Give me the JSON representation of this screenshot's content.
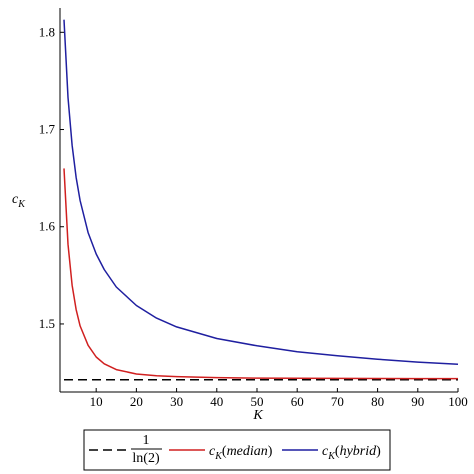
{
  "chart_data": {
    "type": "line",
    "xlabel": "K",
    "ylabel": "c",
    "ylabel_sub": "K",
    "xlim": [
      1,
      100
    ],
    "ylim": [
      1.43,
      1.825
    ],
    "xticks": [
      10,
      20,
      30,
      40,
      50,
      60,
      70,
      80,
      90,
      100
    ],
    "yticks": [
      1.5,
      1.6,
      1.7,
      1.8
    ],
    "ytick_labels": [
      "1.5",
      "1.6",
      "1.7",
      "1.8"
    ],
    "grid": false,
    "legend_position": "bottom",
    "series": [
      {
        "legend_numerator": "1",
        "legend_denominator": "ln(2)",
        "color": "#000000",
        "dash": "dashed",
        "x": [
          2,
          100
        ],
        "y": [
          1.4427,
          1.4427
        ]
      },
      {
        "legend_prefix": "c",
        "legend_sub": "K",
        "legend_arg": "median",
        "color": "#d02020",
        "dash": "solid",
        "x": [
          2,
          3,
          4,
          5,
          6,
          8,
          10,
          12,
          15,
          20,
          25,
          30,
          40,
          50,
          60,
          70,
          80,
          90,
          100
        ],
        "y": [
          1.66,
          1.582,
          1.54,
          1.515,
          1.498,
          1.478,
          1.466,
          1.459,
          1.453,
          1.4485,
          1.4468,
          1.4458,
          1.4448,
          1.4443,
          1.4441,
          1.444,
          1.4439,
          1.4438,
          1.4438
        ]
      },
      {
        "legend_prefix": "c",
        "legend_sub": "K",
        "legend_arg": "hybrid",
        "color": "#1f1fa0",
        "dash": "solid",
        "x": [
          2,
          3,
          4,
          5,
          6,
          8,
          10,
          12,
          15,
          20,
          25,
          30,
          40,
          50,
          60,
          70,
          80,
          90,
          100
        ],
        "y": [
          1.813,
          1.733,
          1.684,
          1.651,
          1.627,
          1.594,
          1.572,
          1.556,
          1.538,
          1.519,
          1.506,
          1.497,
          1.485,
          1.4775,
          1.4715,
          1.4672,
          1.4637,
          1.4608,
          1.4585
        ]
      }
    ]
  }
}
